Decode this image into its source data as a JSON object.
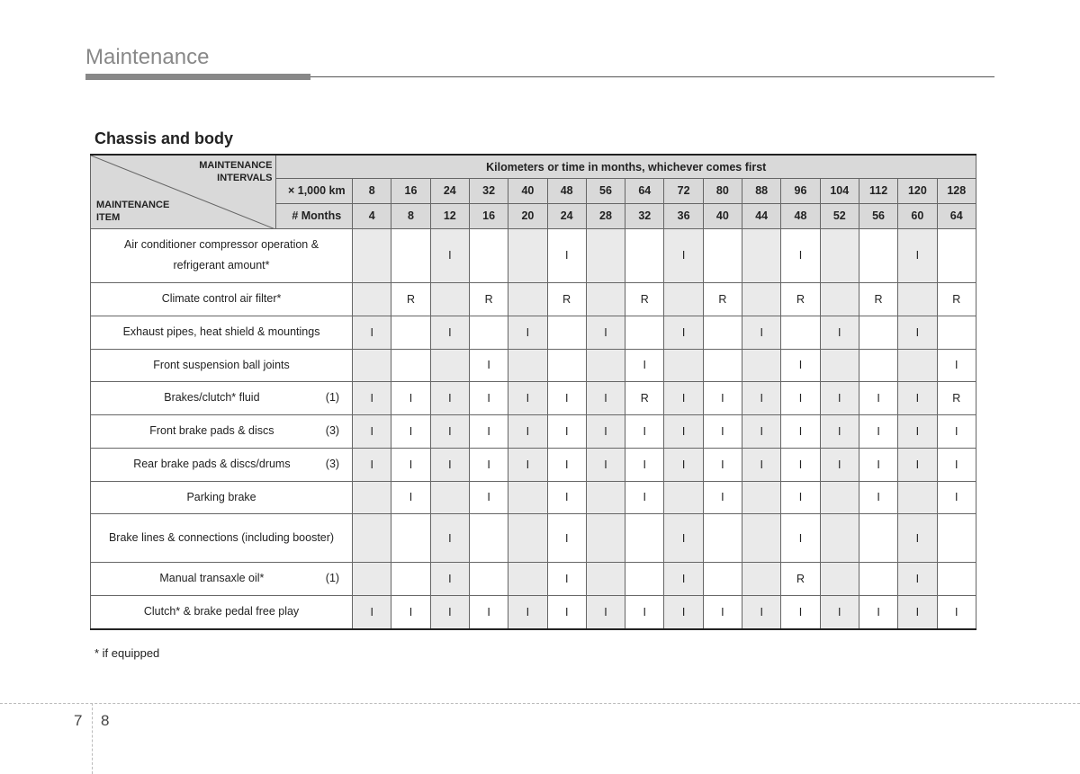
{
  "page_title": "Maintenance",
  "section_title": "Chassis and body",
  "corner": {
    "intervals_top": "MAINTENANCE",
    "intervals_bottom": "INTERVALS",
    "item_top": "MAINTENANCE",
    "item_bottom": "ITEM"
  },
  "super_header": "Kilometers or time in months, whichever comes first",
  "header_rows": [
    {
      "label": "× 1,000 km",
      "values": [
        "8",
        "16",
        "24",
        "32",
        "40",
        "48",
        "56",
        "64",
        "72",
        "80",
        "88",
        "96",
        "104",
        "112",
        "120",
        "128"
      ]
    },
    {
      "label": "# Months",
      "values": [
        "4",
        "8",
        "12",
        "16",
        "20",
        "24",
        "28",
        "32",
        "36",
        "40",
        "44",
        "48",
        "52",
        "56",
        "60",
        "64"
      ]
    }
  ],
  "shaded_cols": [
    0,
    2,
    4,
    6,
    8,
    10,
    12,
    14
  ],
  "rows": [
    {
      "item": "Air conditioner compressor operation & refrigerant amount*",
      "note": "",
      "tall": true,
      "cells": [
        "",
        "",
        "I",
        "",
        "",
        "I",
        "",
        "",
        "I",
        "",
        "",
        "I",
        "",
        "",
        "I",
        ""
      ]
    },
    {
      "item": "Climate control air filter*",
      "note": "",
      "cells": [
        "",
        "R",
        "",
        "R",
        "",
        "R",
        "",
        "R",
        "",
        "R",
        "",
        "R",
        "",
        "R",
        "",
        "R"
      ]
    },
    {
      "item": "Exhaust pipes, heat shield & mountings",
      "note": "",
      "cells": [
        "I",
        "",
        "I",
        "",
        "I",
        "",
        "I",
        "",
        "I",
        "",
        "I",
        "",
        "I",
        "",
        "I",
        ""
      ]
    },
    {
      "item": "Front suspension ball joints",
      "note": "",
      "cells": [
        "",
        "",
        "",
        "I",
        "",
        "",
        "",
        "I",
        "",
        "",
        "",
        "I",
        "",
        "",
        "",
        "I"
      ]
    },
    {
      "item": "Brakes/clutch* fluid",
      "note": "(1)",
      "cells": [
        "I",
        "I",
        "I",
        "I",
        "I",
        "I",
        "I",
        "R",
        "I",
        "I",
        "I",
        "I",
        "I",
        "I",
        "I",
        "R"
      ]
    },
    {
      "item": "Front brake pads & discs",
      "note": "(3)",
      "cells": [
        "I",
        "I",
        "I",
        "I",
        "I",
        "I",
        "I",
        "I",
        "I",
        "I",
        "I",
        "I",
        "I",
        "I",
        "I",
        "I"
      ]
    },
    {
      "item": "Rear brake pads & discs/drums",
      "note": "(3)",
      "cells": [
        "I",
        "I",
        "I",
        "I",
        "I",
        "I",
        "I",
        "I",
        "I",
        "I",
        "I",
        "I",
        "I",
        "I",
        "I",
        "I"
      ]
    },
    {
      "item": "Parking brake",
      "note": "",
      "cells": [
        "",
        "I",
        "",
        "I",
        "",
        "I",
        "",
        "I",
        "",
        "I",
        "",
        "I",
        "",
        "I",
        "",
        "I"
      ]
    },
    {
      "item": "Brake lines & connections (including booster)",
      "note": "",
      "tall": true,
      "cells": [
        "",
        "",
        "I",
        "",
        "",
        "I",
        "",
        "",
        "I",
        "",
        "",
        "I",
        "",
        "",
        "I",
        ""
      ]
    },
    {
      "item": "Manual transaxle oil*",
      "note": "(1)",
      "cells": [
        "",
        "",
        "I",
        "",
        "",
        "I",
        "",
        "",
        "I",
        "",
        "",
        "R",
        "",
        "",
        "I",
        ""
      ]
    },
    {
      "item": "Clutch* & brake pedal free play",
      "note": "",
      "cells": [
        "I",
        "I",
        "I",
        "I",
        "I",
        "I",
        "I",
        "I",
        "I",
        "I",
        "I",
        "I",
        "I",
        "I",
        "I",
        "I"
      ]
    }
  ],
  "footnote": "* if equipped",
  "page_left": "7",
  "page_right": "8",
  "colors": {
    "title_gray": "#888888",
    "header_bg": "#d9d9d9",
    "shade_bg": "#eaeaea",
    "border": "#666666",
    "text": "#222222",
    "crop": "#bbbbbb"
  }
}
